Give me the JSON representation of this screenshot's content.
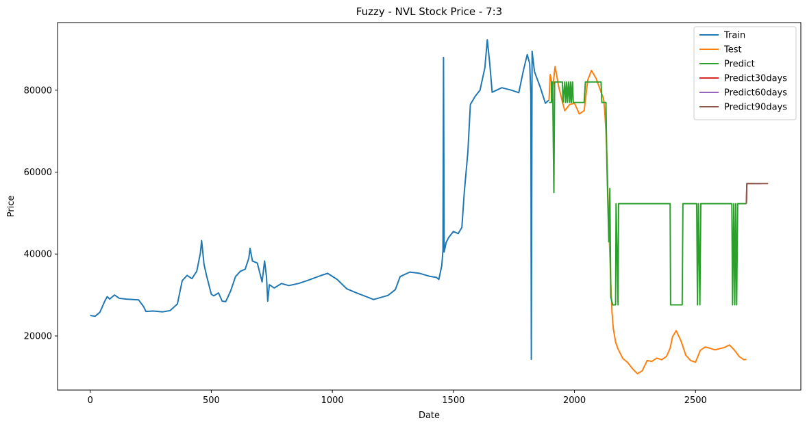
{
  "chart_data": {
    "type": "line",
    "title": "Fuzzy - NVL Stock Price - 7:3",
    "xlabel": "Date",
    "ylabel": "Price",
    "xlim": [
      -135,
      2935
    ],
    "ylim": [
      6800,
      96500
    ],
    "xticks": [
      0,
      500,
      1000,
      1500,
      2000,
      2500
    ],
    "yticks": [
      20000,
      40000,
      60000,
      80000
    ],
    "grid": false,
    "legend_position": "top-right",
    "series": [
      {
        "name": "Train",
        "color": "#1f77b4",
        "points": [
          [
            0,
            25000
          ],
          [
            20,
            24800
          ],
          [
            40,
            25800
          ],
          [
            60,
            28500
          ],
          [
            70,
            29600
          ],
          [
            80,
            29000
          ],
          [
            100,
            30000
          ],
          [
            120,
            29200
          ],
          [
            150,
            29000
          ],
          [
            200,
            28800
          ],
          [
            220,
            27200
          ],
          [
            230,
            26000
          ],
          [
            260,
            26100
          ],
          [
            300,
            25900
          ],
          [
            330,
            26200
          ],
          [
            360,
            27800
          ],
          [
            380,
            33500
          ],
          [
            400,
            34800
          ],
          [
            420,
            34000
          ],
          [
            440,
            35800
          ],
          [
            455,
            40200
          ],
          [
            460,
            43300
          ],
          [
            470,
            37500
          ],
          [
            480,
            34800
          ],
          [
            500,
            30200
          ],
          [
            510,
            29800
          ],
          [
            530,
            30500
          ],
          [
            545,
            28500
          ],
          [
            560,
            28400
          ],
          [
            580,
            31000
          ],
          [
            600,
            34500
          ],
          [
            620,
            35800
          ],
          [
            640,
            36300
          ],
          [
            655,
            39000
          ],
          [
            660,
            41400
          ],
          [
            670,
            38300
          ],
          [
            690,
            37800
          ],
          [
            710,
            33200
          ],
          [
            720,
            38300
          ],
          [
            728,
            34500
          ],
          [
            733,
            28500
          ],
          [
            740,
            32500
          ],
          [
            760,
            31700
          ],
          [
            790,
            32800
          ],
          [
            820,
            32300
          ],
          [
            860,
            32800
          ],
          [
            900,
            33600
          ],
          [
            950,
            34700
          ],
          [
            980,
            35300
          ],
          [
            1020,
            33800
          ],
          [
            1060,
            31500
          ],
          [
            1100,
            30500
          ],
          [
            1140,
            29600
          ],
          [
            1170,
            28900
          ],
          [
            1200,
            29400
          ],
          [
            1230,
            29900
          ],
          [
            1260,
            31300
          ],
          [
            1280,
            34500
          ],
          [
            1320,
            35600
          ],
          [
            1360,
            35300
          ],
          [
            1400,
            34600
          ],
          [
            1430,
            34300
          ],
          [
            1440,
            33800
          ],
          [
            1452,
            37200
          ],
          [
            1457,
            41000
          ],
          [
            1459,
            88000
          ],
          [
            1462,
            40500
          ],
          [
            1470,
            42800
          ],
          [
            1480,
            44000
          ],
          [
            1500,
            45500
          ],
          [
            1520,
            45000
          ],
          [
            1535,
            46500
          ],
          [
            1545,
            55000
          ],
          [
            1560,
            65000
          ],
          [
            1570,
            76500
          ],
          [
            1590,
            78500
          ],
          [
            1610,
            80000
          ],
          [
            1630,
            85500
          ],
          [
            1640,
            92300
          ],
          [
            1650,
            86500
          ],
          [
            1660,
            79500
          ],
          [
            1700,
            80600
          ],
          [
            1740,
            80000
          ],
          [
            1770,
            79400
          ],
          [
            1790,
            85000
          ],
          [
            1805,
            88700
          ],
          [
            1815,
            86500
          ],
          [
            1820,
            79000
          ],
          [
            1822,
            14300
          ],
          [
            1825,
            89500
          ],
          [
            1835,
            84500
          ],
          [
            1860,
            80500
          ],
          [
            1880,
            76800
          ],
          [
            1895,
            77600
          ]
        ]
      },
      {
        "name": "Test",
        "color": "#ff7f0e",
        "points": [
          [
            1895,
            77500
          ],
          [
            1900,
            83800
          ],
          [
            1910,
            80500
          ],
          [
            1920,
            85800
          ],
          [
            1935,
            80800
          ],
          [
            1950,
            77200
          ],
          [
            1960,
            75000
          ],
          [
            1980,
            76500
          ],
          [
            2000,
            76800
          ],
          [
            2020,
            74200
          ],
          [
            2040,
            75000
          ],
          [
            2055,
            82500
          ],
          [
            2070,
            84800
          ],
          [
            2090,
            82800
          ],
          [
            2110,
            79500
          ],
          [
            2120,
            78000
          ],
          [
            2125,
            75000
          ],
          [
            2130,
            70000
          ],
          [
            2135,
            62000
          ],
          [
            2140,
            50000
          ],
          [
            2145,
            42000
          ],
          [
            2150,
            33000
          ],
          [
            2155,
            26000
          ],
          [
            2160,
            22000
          ],
          [
            2170,
            18500
          ],
          [
            2180,
            16800
          ],
          [
            2200,
            14500
          ],
          [
            2220,
            13500
          ],
          [
            2240,
            12000
          ],
          [
            2260,
            10800
          ],
          [
            2280,
            11500
          ],
          [
            2300,
            14000
          ],
          [
            2320,
            13800
          ],
          [
            2340,
            14600
          ],
          [
            2360,
            14200
          ],
          [
            2380,
            15000
          ],
          [
            2395,
            17000
          ],
          [
            2405,
            19800
          ],
          [
            2420,
            21300
          ],
          [
            2440,
            18800
          ],
          [
            2460,
            15300
          ],
          [
            2480,
            14000
          ],
          [
            2500,
            13600
          ],
          [
            2520,
            16500
          ],
          [
            2540,
            17300
          ],
          [
            2560,
            17000
          ],
          [
            2580,
            16600
          ],
          [
            2600,
            16900
          ],
          [
            2620,
            17200
          ],
          [
            2640,
            17800
          ],
          [
            2660,
            16600
          ],
          [
            2680,
            15000
          ],
          [
            2700,
            14200
          ],
          [
            2710,
            14300
          ]
        ]
      },
      {
        "name": "Predict",
        "color": "#2ca02c",
        "points": [
          [
            1895,
            77000
          ],
          [
            1905,
            77000
          ],
          [
            1905,
            82000
          ],
          [
            1910,
            82000
          ],
          [
            1915,
            55000
          ],
          [
            1918,
            82000
          ],
          [
            1950,
            82000
          ],
          [
            1953,
            77000
          ],
          [
            1960,
            82000
          ],
          [
            1963,
            77000
          ],
          [
            1968,
            82000
          ],
          [
            1971,
            77000
          ],
          [
            1976,
            82000
          ],
          [
            1980,
            77000
          ],
          [
            1984,
            82000
          ],
          [
            1987,
            77000
          ],
          [
            1992,
            82000
          ],
          [
            1995,
            77000
          ],
          [
            2040,
            77000
          ],
          [
            2045,
            82000
          ],
          [
            2110,
            82000
          ],
          [
            2113,
            77000
          ],
          [
            2130,
            77000
          ],
          [
            2134,
            62000
          ],
          [
            2138,
            52500
          ],
          [
            2142,
            43000
          ],
          [
            2146,
            56000
          ],
          [
            2150,
            29500
          ],
          [
            2158,
            27600
          ],
          [
            2170,
            27600
          ],
          [
            2172,
            52300
          ],
          [
            2180,
            27600
          ],
          [
            2182,
            52300
          ],
          [
            2395,
            52300
          ],
          [
            2397,
            27600
          ],
          [
            2445,
            27600
          ],
          [
            2448,
            52300
          ],
          [
            2505,
            52300
          ],
          [
            2508,
            27600
          ],
          [
            2512,
            52300
          ],
          [
            2518,
            27600
          ],
          [
            2522,
            52300
          ],
          [
            2650,
            52300
          ],
          [
            2653,
            27600
          ],
          [
            2658,
            52300
          ],
          [
            2662,
            27600
          ],
          [
            2666,
            52300
          ],
          [
            2670,
            27600
          ],
          [
            2674,
            52300
          ],
          [
            2710,
            52300
          ]
        ]
      },
      {
        "name": "Predict30days",
        "color": "#d62728",
        "points": [
          [
            2710,
            52300
          ],
          [
            2712,
            57200
          ],
          [
            2740,
            57200
          ]
        ]
      },
      {
        "name": "Predict60days",
        "color": "#9467bd",
        "points": [
          [
            2740,
            57200
          ],
          [
            2770,
            57200
          ]
        ]
      },
      {
        "name": "Predict90days",
        "color": "#8c564b",
        "points": [
          [
            2710,
            52300
          ],
          [
            2712,
            57200
          ],
          [
            2800,
            57200
          ]
        ]
      }
    ]
  }
}
